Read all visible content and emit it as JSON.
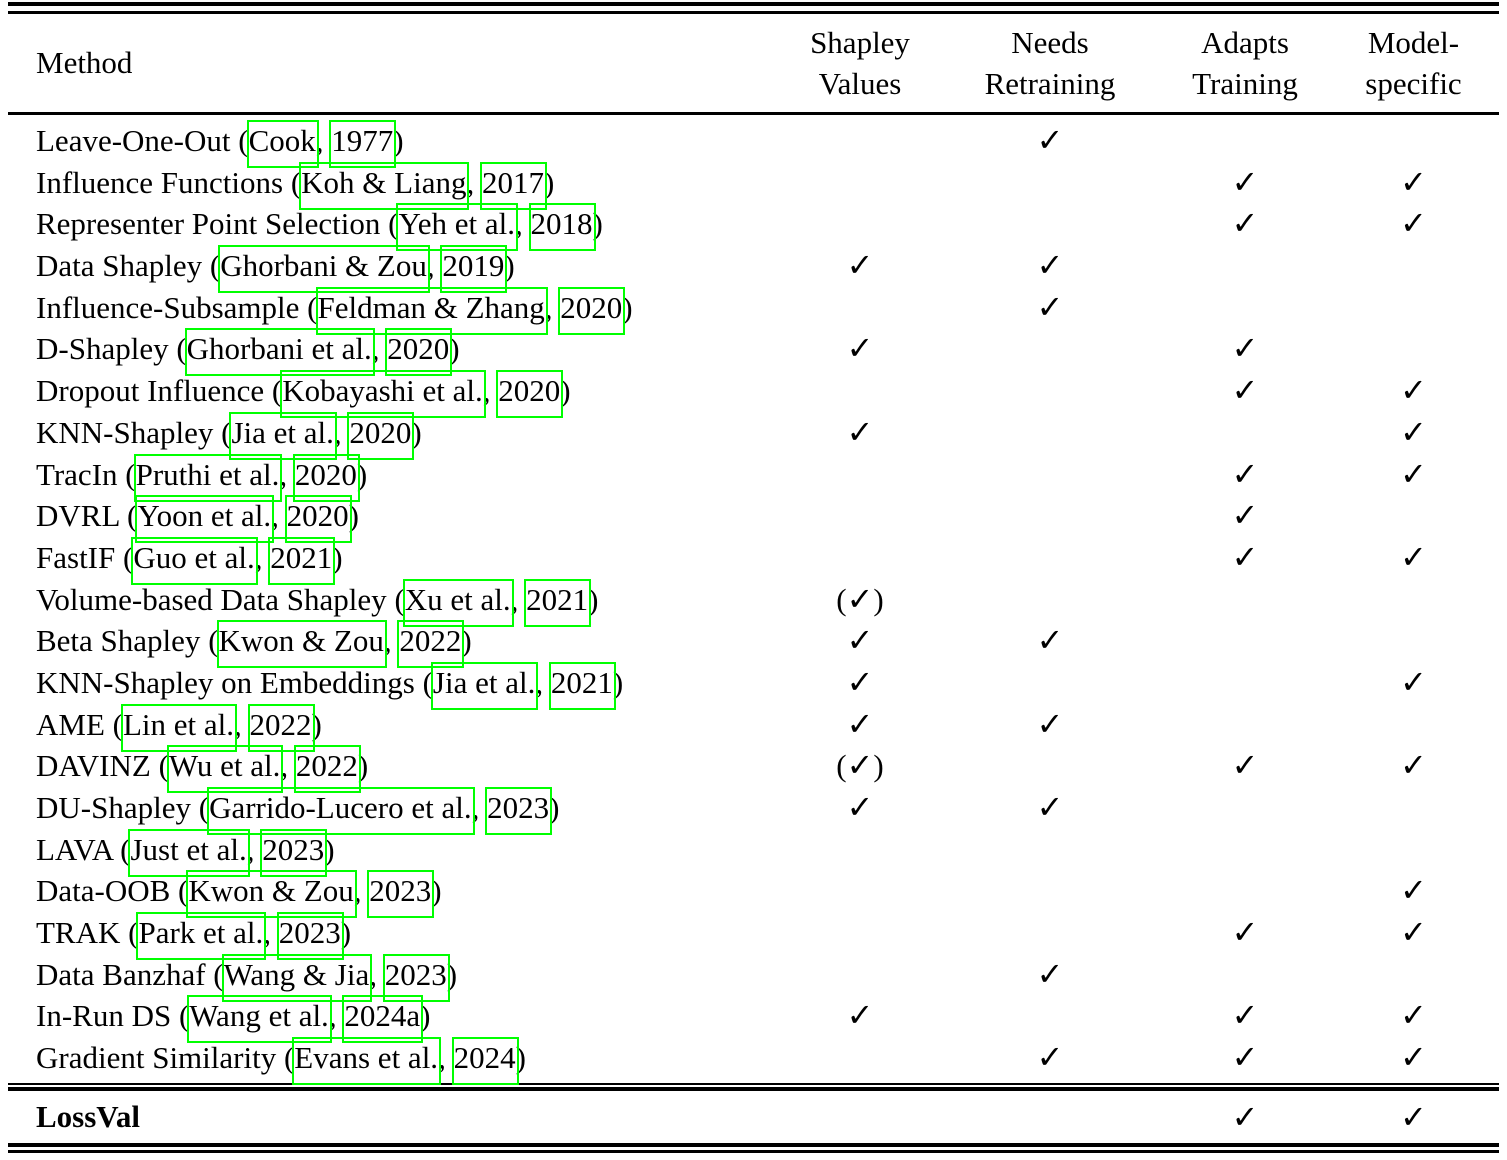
{
  "table": {
    "header": {
      "method": "Method",
      "cols": [
        {
          "key": "shapley-values",
          "line1": "Shapley",
          "line2": "Values"
        },
        {
          "key": "needs-retraining",
          "line1": "Needs",
          "line2": "Retraining"
        },
        {
          "key": "adapts-training",
          "line1": "Adapts",
          "line2": "Training"
        },
        {
          "key": "model-specific",
          "line1": "Model-",
          "line2": "specific"
        }
      ]
    },
    "punct": {
      "open": " (",
      "comma": ", ",
      "close": ")"
    },
    "check_symbol": "✓",
    "paren_open": "(",
    "paren_close": ")",
    "rows": [
      {
        "name": "Leave-One-Out",
        "author": "Cook",
        "year": "1977",
        "checks": [
          "",
          "yes",
          "",
          ""
        ]
      },
      {
        "name": "Influence Functions",
        "author": "Koh & Liang",
        "year": "2017",
        "checks": [
          "",
          "",
          "yes",
          "yes"
        ]
      },
      {
        "name": "Representer Point Selection",
        "author": "Yeh et al.",
        "year": "2018",
        "checks": [
          "",
          "",
          "yes",
          "yes"
        ]
      },
      {
        "name": "Data Shapley",
        "author": "Ghorbani & Zou",
        "year": "2019",
        "checks": [
          "yes",
          "yes",
          "",
          ""
        ]
      },
      {
        "name": "Influence-Subsample",
        "author": "Feldman & Zhang",
        "year": "2020",
        "checks": [
          "",
          "yes",
          "",
          ""
        ]
      },
      {
        "name": "D-Shapley",
        "author": "Ghorbani et al.",
        "year": "2020",
        "checks": [
          "yes",
          "",
          "yes",
          ""
        ]
      },
      {
        "name": "Dropout Influence",
        "author": "Kobayashi et al.",
        "year": "2020",
        "checks": [
          "",
          "",
          "yes",
          "yes"
        ]
      },
      {
        "name": "KNN-Shapley",
        "author": "Jia et al.",
        "year": "2020",
        "checks": [
          "yes",
          "",
          "",
          "yes"
        ]
      },
      {
        "name": "TracIn",
        "author": "Pruthi et al.",
        "year": "2020",
        "checks": [
          "",
          "",
          "yes",
          "yes"
        ]
      },
      {
        "name": "DVRL",
        "author": "Yoon et al.",
        "year": "2020",
        "checks": [
          "",
          "",
          "yes",
          ""
        ]
      },
      {
        "name": "FastIF",
        "author": "Guo et al.",
        "year": "2021",
        "checks": [
          "",
          "",
          "yes",
          "yes"
        ]
      },
      {
        "name": "Volume-based Data Shapley",
        "author": "Xu et al.",
        "year": "2021",
        "checks": [
          "paren",
          "",
          "",
          ""
        ]
      },
      {
        "name": "Beta Shapley",
        "author": "Kwon & Zou",
        "year": "2022",
        "checks": [
          "yes",
          "yes",
          "",
          ""
        ]
      },
      {
        "name": "KNN-Shapley on Embeddings",
        "author": "Jia et al.",
        "year": "2021",
        "checks": [
          "yes",
          "",
          "",
          "yes"
        ]
      },
      {
        "name": "AME",
        "author": "Lin et al.",
        "year": "2022",
        "checks": [
          "yes",
          "yes",
          "",
          ""
        ]
      },
      {
        "name": "DAVINZ",
        "author": "Wu et al.",
        "year": "2022",
        "checks": [
          "paren",
          "",
          "yes",
          "yes"
        ]
      },
      {
        "name": "DU-Shapley",
        "author": "Garrido-Lucero et al.",
        "year": "2023",
        "checks": [
          "yes",
          "yes",
          "",
          ""
        ]
      },
      {
        "name": "LAVA",
        "author": "Just et al.",
        "year": "2023",
        "checks": [
          "",
          "",
          "",
          ""
        ]
      },
      {
        "name": "Data-OOB",
        "author": "Kwon & Zou",
        "year": "2023",
        "checks": [
          "",
          "",
          "",
          "yes"
        ]
      },
      {
        "name": "TRAK",
        "author": "Park et al.",
        "year": "2023",
        "checks": [
          "",
          "",
          "yes",
          "yes"
        ]
      },
      {
        "name": "Data Banzhaf",
        "author": "Wang & Jia",
        "year": "2023",
        "checks": [
          "",
          "yes",
          "",
          ""
        ]
      },
      {
        "name": "In-Run DS",
        "author": "Wang et al.",
        "year": "2024a",
        "checks": [
          "yes",
          "",
          "yes",
          "yes"
        ]
      },
      {
        "name": "Gradient Similarity",
        "author": "Evans et al.",
        "year": "2024",
        "checks": [
          "",
          "yes",
          "yes",
          "yes"
        ]
      }
    ],
    "footer_row": {
      "name": "LossVal",
      "checks": [
        "",
        "",
        "yes",
        "yes"
      ]
    }
  },
  "colors": {
    "citation_box": "#00ff00",
    "rule": "#000000",
    "text": "#000000",
    "background": "#ffffff"
  }
}
